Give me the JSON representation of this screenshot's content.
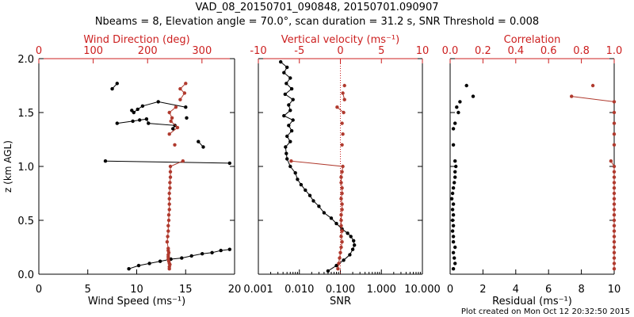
{
  "title_line1": "VAD_08_20150701_090848, 20150701.090907",
  "title_line2": "Nbeams = 8, Elevation angle = 70.0°, scan duration = 31.2 s, SNR Threshold = 0.008",
  "footer": "Plot created on Mon Oct 12 20:32:50 2015",
  "colors": {
    "black_series": "#000000",
    "red_series": "#b03a2e",
    "red_axis": "#cc1f1f"
  },
  "chart_data": [
    {
      "type": "line",
      "ylabel": "z (km AGL)",
      "ylim": [
        0,
        2.0
      ],
      "y_ticks": [
        "0.0",
        "0.5",
        "1.0",
        "1.5",
        "2.0"
      ],
      "bottom_axis": {
        "label": "Wind Speed",
        "unit": "(ms⁻¹)",
        "lim": [
          0,
          20
        ],
        "ticks": [
          "0",
          "5",
          "10",
          "15",
          "20"
        ]
      },
      "top_axis": {
        "label": "Wind Direction",
        "unit": "(deg)",
        "lim": [
          0,
          360
        ],
        "ticks": [
          "0",
          "100",
          "200",
          "300"
        ]
      },
      "series": [
        {
          "axis": "bottom",
          "color": "black",
          "line": "partial",
          "points": [
            [
              9.2,
              0.05
            ],
            [
              10.2,
              0.08
            ],
            [
              11.3,
              0.1
            ],
            [
              12.4,
              0.12
            ],
            [
              13.5,
              0.14
            ],
            [
              14.6,
              0.15
            ],
            [
              15.6,
              0.17
            ],
            [
              16.7,
              0.19
            ],
            [
              17.7,
              0.2
            ],
            [
              18.6,
              0.22
            ],
            [
              19.5,
              0.23
            ],
            [
              6.8,
              1.05
            ],
            [
              19.5,
              1.03
            ],
            [
              8.0,
              1.4
            ],
            [
              9.6,
              1.42
            ],
            [
              10.3,
              1.43
            ],
            [
              11.0,
              1.44
            ],
            [
              11.2,
              1.4
            ],
            [
              13.9,
              1.38
            ],
            [
              13.7,
              1.35
            ],
            [
              15.1,
              1.45
            ],
            [
              9.5,
              1.52
            ],
            [
              9.7,
              1.5
            ],
            [
              10.1,
              1.53
            ],
            [
              10.6,
              1.56
            ],
            [
              12.2,
              1.6
            ],
            [
              15.0,
              1.55
            ],
            [
              7.5,
              1.72
            ],
            [
              8.0,
              1.77
            ],
            [
              16.8,
              1.18
            ],
            [
              16.3,
              1.23
            ]
          ]
        },
        {
          "axis": "top",
          "color": "red",
          "line": "partial",
          "points": [
            [
              240,
              0.05
            ],
            [
              240,
              0.07
            ],
            [
              241,
              0.09
            ],
            [
              240,
              0.1
            ],
            [
              239,
              0.12
            ],
            [
              238,
              0.14
            ],
            [
              238,
              0.16
            ],
            [
              238,
              0.18
            ],
            [
              239,
              0.2
            ],
            [
              238,
              0.22
            ],
            [
              238,
              0.24
            ],
            [
              236,
              0.3
            ],
            [
              237,
              0.35
            ],
            [
              238,
              0.4
            ],
            [
              238,
              0.45
            ],
            [
              239,
              0.5
            ],
            [
              239,
              0.55
            ],
            [
              240,
              0.6
            ],
            [
              240,
              0.65
            ],
            [
              240,
              0.7
            ],
            [
              240,
              0.75
            ],
            [
              241,
              0.8
            ],
            [
              241,
              0.85
            ],
            [
              242,
              0.9
            ],
            [
              242,
              0.95
            ],
            [
              242,
              1.0
            ],
            [
              265,
              1.05
            ],
            [
              250,
              1.2
            ],
            [
              240,
              1.3
            ],
            [
              255,
              1.36
            ],
            [
              243,
              1.42
            ],
            [
              245,
              1.45
            ],
            [
              240,
              1.5
            ],
            [
              252,
              1.55
            ],
            [
              260,
              1.62
            ],
            [
              268,
              1.68
            ],
            [
              260,
              1.72
            ],
            [
              270,
              1.77
            ]
          ]
        }
      ]
    },
    {
      "type": "line",
      "ylim": [
        0,
        2.0
      ],
      "bottom_axis": {
        "label": "SNR",
        "scale": "log",
        "lim": [
          0.001,
          10
        ],
        "ticks": [
          "0.001",
          "0.010",
          "0.100",
          "1.000",
          "10.000"
        ]
      },
      "top_axis": {
        "label": "Vertical velocity",
        "unit": "(ms⁻¹)",
        "lim": [
          -10,
          10
        ],
        "ticks": [
          "-10",
          "-5",
          "0",
          "5",
          "10"
        ]
      },
      "series": [
        {
          "axis": "bottom",
          "color": "black",
          "line": "full",
          "points": [
            [
              0.05,
              0.03
            ],
            [
              0.08,
              0.08
            ],
            [
              0.12,
              0.13
            ],
            [
              0.17,
              0.18
            ],
            [
              0.2,
              0.23
            ],
            [
              0.22,
              0.27
            ],
            [
              0.21,
              0.31
            ],
            [
              0.18,
              0.35
            ],
            [
              0.15,
              0.38
            ],
            [
              0.11,
              0.42
            ],
            [
              0.08,
              0.47
            ],
            [
              0.06,
              0.52
            ],
            [
              0.04,
              0.57
            ],
            [
              0.03,
              0.63
            ],
            [
              0.022,
              0.68
            ],
            [
              0.018,
              0.73
            ],
            [
              0.014,
              0.78
            ],
            [
              0.011,
              0.83
            ],
            [
              0.009,
              0.88
            ],
            [
              0.008,
              0.94
            ],
            [
              0.006,
              1.0
            ],
            [
              0.005,
              1.07
            ],
            [
              0.0048,
              1.12
            ],
            [
              0.0046,
              1.18
            ],
            [
              0.006,
              1.23
            ],
            [
              0.005,
              1.28
            ],
            [
              0.0065,
              1.33
            ],
            [
              0.0055,
              1.38
            ],
            [
              0.007,
              1.43
            ],
            [
              0.0042,
              1.47
            ],
            [
              0.006,
              1.52
            ],
            [
              0.0055,
              1.57
            ],
            [
              0.007,
              1.62
            ],
            [
              0.0045,
              1.67
            ],
            [
              0.0065,
              1.72
            ],
            [
              0.0048,
              1.77
            ],
            [
              0.006,
              1.82
            ],
            [
              0.0042,
              1.87
            ],
            [
              0.005,
              1.92
            ],
            [
              0.0035,
              1.97
            ]
          ]
        },
        {
          "axis": "top",
          "color": "red",
          "line": "partial",
          "points": [
            [
              -0.3,
              0.05
            ],
            [
              -0.2,
              0.1
            ],
            [
              -0.1,
              0.15
            ],
            [
              0.0,
              0.2
            ],
            [
              0.1,
              0.25
            ],
            [
              0.2,
              0.3
            ],
            [
              0.1,
              0.35
            ],
            [
              0.2,
              0.4
            ],
            [
              0.1,
              0.45
            ],
            [
              0.1,
              0.5
            ],
            [
              0.1,
              0.55
            ],
            [
              0.2,
              0.6
            ],
            [
              0.2,
              0.65
            ],
            [
              0.1,
              0.7
            ],
            [
              0.2,
              0.75
            ],
            [
              0.2,
              0.8
            ],
            [
              0.1,
              0.85
            ],
            [
              0.1,
              0.9
            ],
            [
              0.2,
              0.95
            ],
            [
              0.3,
              1.0
            ],
            [
              -6.0,
              1.05
            ],
            [
              0.2,
              1.2
            ],
            [
              0.3,
              1.3
            ],
            [
              0.2,
              1.4
            ],
            [
              0.4,
              1.5
            ],
            [
              -0.4,
              1.55
            ],
            [
              0.5,
              1.62
            ],
            [
              0.3,
              1.68
            ],
            [
              0.5,
              1.75
            ]
          ]
        }
      ],
      "reference_line": {
        "axis": "top",
        "value": 0,
        "style": "dotted"
      }
    },
    {
      "type": "scatter",
      "ylim": [
        0,
        2.0
      ],
      "bottom_axis": {
        "label": "Residual",
        "unit": "(ms⁻¹)",
        "lim": [
          0,
          10
        ],
        "ticks": [
          "0",
          "2",
          "4",
          "6",
          "8",
          "10"
        ]
      },
      "top_axis": {
        "label": "Correlation",
        "lim": [
          0,
          1.0
        ],
        "ticks": [
          "0.0",
          "0.2",
          "0.4",
          "0.6",
          "0.8",
          "1.0"
        ]
      },
      "series": [
        {
          "axis": "bottom",
          "color": "black",
          "line": "none",
          "points": [
            [
              0.2,
              0.05
            ],
            [
              0.3,
              0.1
            ],
            [
              0.25,
              0.15
            ],
            [
              0.2,
              0.2
            ],
            [
              0.3,
              0.25
            ],
            [
              0.2,
              0.3
            ],
            [
              0.2,
              0.35
            ],
            [
              0.15,
              0.4
            ],
            [
              0.2,
              0.45
            ],
            [
              0.15,
              0.5
            ],
            [
              0.2,
              0.55
            ],
            [
              0.15,
              0.6
            ],
            [
              0.2,
              0.65
            ],
            [
              0.1,
              0.7
            ],
            [
              0.15,
              0.75
            ],
            [
              0.2,
              0.8
            ],
            [
              0.25,
              0.85
            ],
            [
              0.3,
              0.9
            ],
            [
              0.3,
              0.95
            ],
            [
              0.35,
              1.0
            ],
            [
              0.3,
              1.05
            ],
            [
              0.2,
              1.2
            ],
            [
              0.2,
              1.35
            ],
            [
              0.3,
              1.4
            ],
            [
              0.5,
              1.5
            ],
            [
              0.4,
              1.55
            ],
            [
              0.6,
              1.6
            ],
            [
              1.4,
              1.65
            ],
            [
              1.0,
              1.75
            ]
          ]
        },
        {
          "axis": "top",
          "color": "red",
          "line": "partial",
          "points": [
            [
              1.0,
              0.05
            ],
            [
              1.0,
              0.1
            ],
            [
              1.0,
              0.15
            ],
            [
              1.0,
              0.2
            ],
            [
              1.0,
              0.25
            ],
            [
              1.0,
              0.3
            ],
            [
              1.0,
              0.35
            ],
            [
              1.0,
              0.4
            ],
            [
              1.0,
              0.45
            ],
            [
              1.0,
              0.5
            ],
            [
              1.0,
              0.55
            ],
            [
              1.0,
              0.6
            ],
            [
              1.0,
              0.65
            ],
            [
              1.0,
              0.7
            ],
            [
              1.0,
              0.75
            ],
            [
              1.0,
              0.8
            ],
            [
              1.0,
              0.85
            ],
            [
              1.0,
              0.9
            ],
            [
              1.0,
              0.95
            ],
            [
              1.0,
              1.0
            ],
            [
              0.98,
              1.05
            ],
            [
              1.0,
              1.2
            ],
            [
              1.0,
              1.3
            ],
            [
              1.0,
              1.4
            ],
            [
              1.0,
              1.5
            ],
            [
              1.0,
              1.6
            ],
            [
              0.74,
              1.65
            ],
            [
              0.87,
              1.75
            ]
          ]
        }
      ]
    }
  ]
}
